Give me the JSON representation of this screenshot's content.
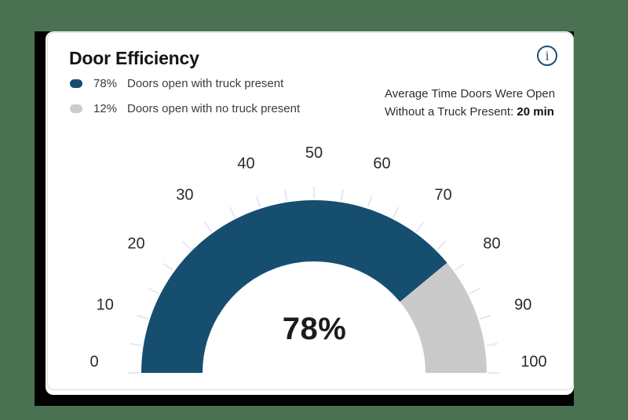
{
  "card": {
    "title": "Door Efficiency",
    "info_icon": "info-circle-icon",
    "legend": {
      "items": [
        {
          "value": "78%",
          "label": "Doors open with truck present",
          "color": "#164e70"
        },
        {
          "value": "12%",
          "label": "Doors open with no truck present",
          "color": "#cccccc"
        }
      ]
    },
    "stats": {
      "line1": "Average Time Doors Were Open",
      "line2_prefix": "Without a Truck Present: ",
      "line2_bold": "20 min"
    }
  },
  "chart_data": {
    "type": "gauge",
    "title": "Door Efficiency",
    "min": 0,
    "max": 100,
    "value": 78,
    "center_label": "78%",
    "arc_span_degrees": 180,
    "tick_step": 5,
    "label_step": 10,
    "axis_labels": [
      "0",
      "10",
      "20",
      "30",
      "40",
      "50",
      "60",
      "70",
      "80",
      "90",
      "100"
    ],
    "series": [
      {
        "name": "Doors open with truck present",
        "value": 78,
        "color": "#164e70"
      },
      {
        "name": "Doors open with no truck present",
        "value": 12,
        "color": "#cacaca"
      }
    ],
    "colors": {
      "filled": "#164e70",
      "remainder": "#cacaca",
      "tick": "#e6e8f4",
      "axis_label": "#2b2b2b",
      "info_icon": "#1e4e74"
    },
    "legend_position": "top-left",
    "grid": false
  },
  "page": {
    "background_color": "#4a7151",
    "shadow_color": "#000000"
  }
}
